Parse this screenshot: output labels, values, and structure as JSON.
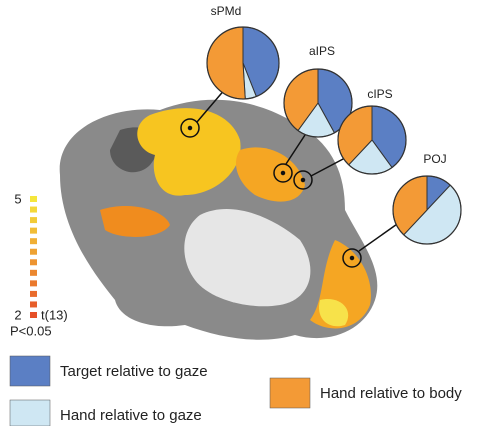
{
  "chart_data": [
    {
      "type": "pie",
      "title": "sPMd",
      "values": [
        44,
        5,
        51
      ]
    },
    {
      "type": "pie",
      "title": "aIPS",
      "values": [
        42,
        18,
        40
      ]
    },
    {
      "type": "pie",
      "title": "cIPS",
      "values": [
        40,
        22,
        38
      ]
    },
    {
      "type": "pie",
      "title": "POJ",
      "values": [
        12,
        50,
        38
      ]
    }
  ],
  "legend": [
    {
      "name": "Target relative to gaze",
      "color": "#5b7fc4"
    },
    {
      "name": "Hand relative to gaze",
      "color": "#cfe7f3"
    },
    {
      "name": "Hand relative to body",
      "color": "#f39a36"
    }
  ],
  "colorbar": {
    "lim": [
      2,
      5
    ],
    "ticks": [
      5,
      2
    ],
    "label": "t(13)",
    "note": "P<0.05"
  }
}
